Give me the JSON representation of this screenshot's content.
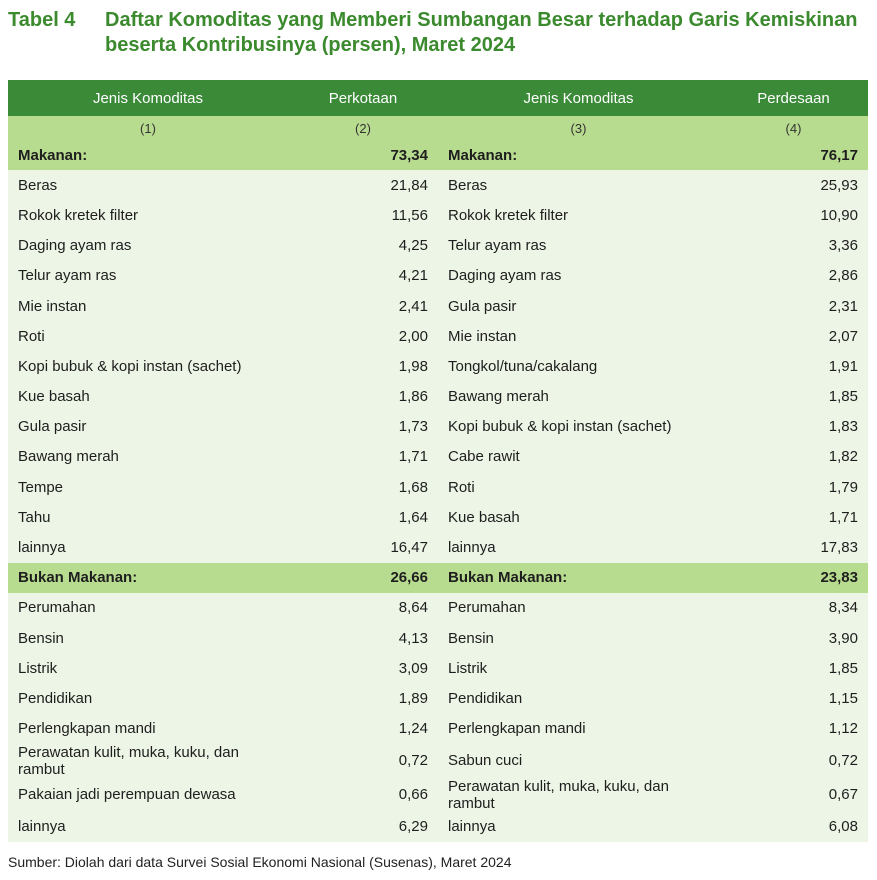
{
  "title": {
    "label": "Tabel 4",
    "line1": "Daftar Komoditas yang Memberi Sumbangan Besar terhadap Garis Kemiskinan",
    "line2": "beserta Kontribusinya (persen), Maret 2024"
  },
  "header": {
    "col1": "Jenis Komoditas",
    "col2": "Perkotaan",
    "col3": "Jenis Komoditas",
    "col4": "Perdesaan",
    "num1": "(1)",
    "num2": "(2)",
    "num3": "(3)",
    "num4": "(4)"
  },
  "makanan": {
    "label_left": "Makanan:",
    "total_left": "73,34",
    "label_right": "Makanan:",
    "total_right": "76,17",
    "rows": [
      {
        "k1": "Beras",
        "v1": "21,84",
        "k2": "Beras",
        "v2": "25,93"
      },
      {
        "k1": "Rokok kretek filter",
        "v1": "11,56",
        "k2": "Rokok kretek filter",
        "v2": "10,90"
      },
      {
        "k1": "Daging ayam ras",
        "v1": "4,25",
        "k2": "Telur ayam ras",
        "v2": "3,36"
      },
      {
        "k1": "Telur ayam ras",
        "v1": "4,21",
        "k2": "Daging ayam ras",
        "v2": "2,86"
      },
      {
        "k1": "Mie instan",
        "v1": "2,41",
        "k2": "Gula pasir",
        "v2": "2,31"
      },
      {
        "k1": "Roti",
        "v1": "2,00",
        "k2": "Mie instan",
        "v2": "2,07"
      },
      {
        "k1": "Kopi bubuk & kopi instan (sachet)",
        "v1": "1,98",
        "k2": "Tongkol/tuna/cakalang",
        "v2": "1,91"
      },
      {
        "k1": "Kue basah",
        "v1": "1,86",
        "k2": "Bawang merah",
        "v2": "1,85"
      },
      {
        "k1": "Gula pasir",
        "v1": "1,73",
        "k2": "Kopi bubuk & kopi instan (sachet)",
        "v2": "1,83"
      },
      {
        "k1": "Bawang merah",
        "v1": "1,71",
        "k2": "Cabe rawit",
        "v2": "1,82"
      },
      {
        "k1": "Tempe",
        "v1": "1,68",
        "k2": "Roti",
        "v2": "1,79"
      },
      {
        "k1": "Tahu",
        "v1": "1,64",
        "k2": "Kue basah",
        "v2": "1,71"
      },
      {
        "k1": "lainnya",
        "v1": "16,47",
        "k2": "lainnya",
        "v2": "17,83"
      }
    ]
  },
  "bukan_makanan": {
    "label_left": "Bukan Makanan:",
    "total_left": "26,66",
    "label_right": "Bukan Makanan:",
    "total_right": "23,83",
    "rows": [
      {
        "k1": "Perumahan",
        "v1": "8,64",
        "k2": "Perumahan",
        "v2": "8,34"
      },
      {
        "k1": "Bensin",
        "v1": "4,13",
        "k2": "Bensin",
        "v2": "3,90"
      },
      {
        "k1": "Listrik",
        "v1": "3,09",
        "k2": "Listrik",
        "v2": "1,85"
      },
      {
        "k1": "Pendidikan",
        "v1": "1,89",
        "k2": "Pendidikan",
        "v2": "1,15"
      },
      {
        "k1": "Perlengkapan mandi",
        "v1": "1,24",
        "k2": "Perlengkapan mandi",
        "v2": "1,12"
      },
      {
        "k1": "Perawatan kulit, muka, kuku, dan rambut",
        "v1": "0,72",
        "k2": "Sabun cuci",
        "v2": "0,72"
      },
      {
        "k1": "Pakaian jadi perempuan dewasa",
        "v1": "0,66",
        "k2": "Perawatan kulit, muka, kuku, dan rambut",
        "v2": "0,67"
      },
      {
        "k1": "lainnya",
        "v1": "6,29",
        "k2": "lainnya",
        "v2": "6,08"
      }
    ]
  },
  "source": "Sumber: Diolah dari data Survei Sosial Ekonomi Nasional (Susenas), Maret 2024",
  "colors": {
    "header_bg": "#3a8a38",
    "subheader_bg": "#b8dc8f",
    "row_bg": "#edf5e6",
    "title_color": "#3b8a2e"
  }
}
